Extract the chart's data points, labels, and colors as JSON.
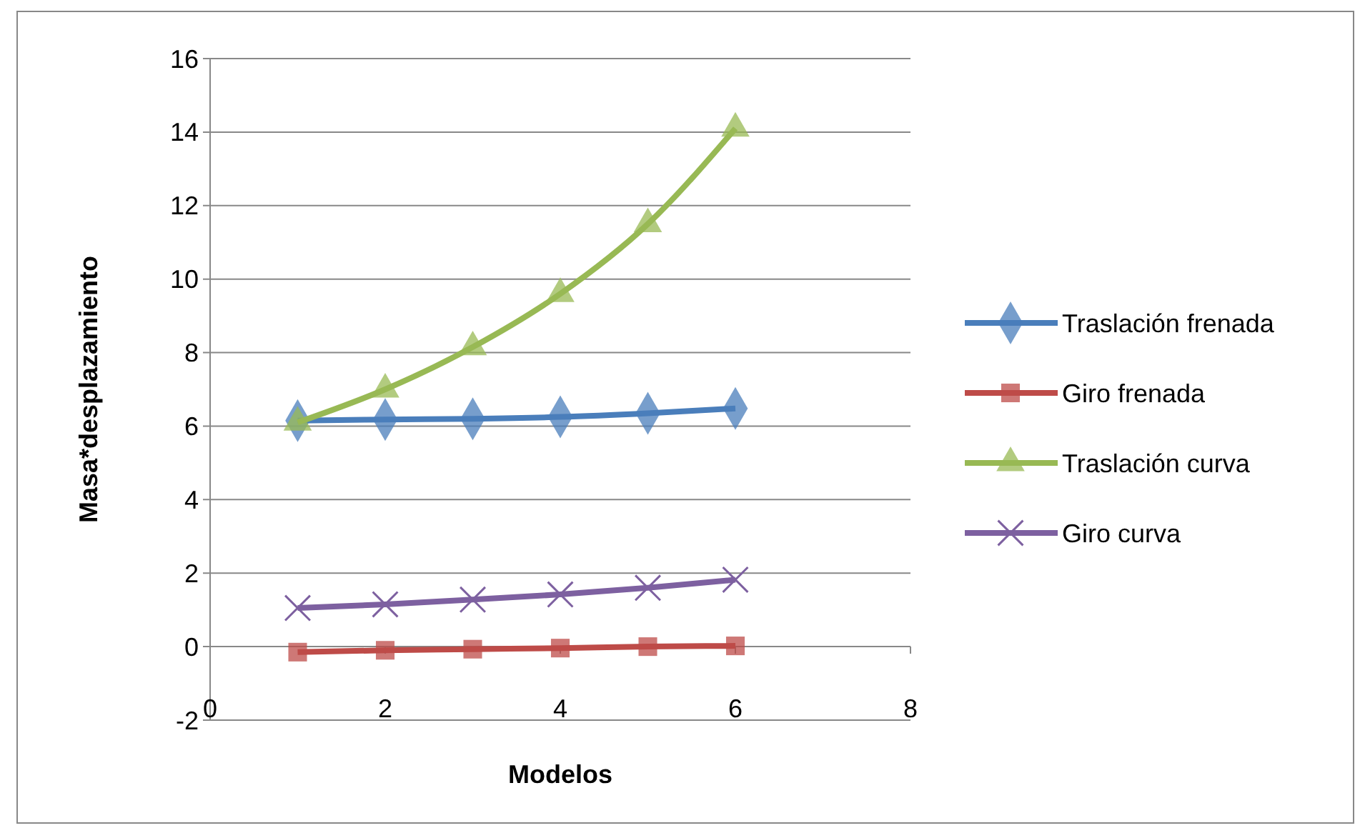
{
  "chart_data": {
    "type": "line",
    "xlabel": "Modelos",
    "ylabel": "Masa*desplazamiento",
    "x": [
      1,
      2,
      3,
      4,
      5,
      6
    ],
    "series": [
      {
        "name": "Traslación frenada",
        "color": "#4a7ebb",
        "marker": "diamond",
        "values": [
          6.15,
          6.18,
          6.2,
          6.25,
          6.35,
          6.48
        ]
      },
      {
        "name": "Giro frenada",
        "color": "#be4b48",
        "marker": "square",
        "values": [
          -0.15,
          -0.1,
          -0.07,
          -0.04,
          0,
          0.02
        ]
      },
      {
        "name": "Traslación curva",
        "color": "#98b954",
        "marker": "triangle",
        "values": [
          6.1,
          7.0,
          8.15,
          9.6,
          11.5,
          14.1
        ]
      },
      {
        "name": "Giro curva",
        "color": "#7d60a0",
        "marker": "cross",
        "values": [
          1.05,
          1.15,
          1.28,
          1.42,
          1.6,
          1.82
        ]
      }
    ],
    "xlim": [
      0,
      8
    ],
    "xticks": [
      0,
      2,
      4,
      6,
      8
    ],
    "ylim": [
      -2,
      16
    ],
    "yticks": [
      -2,
      0,
      2,
      4,
      6,
      8,
      10,
      12,
      14,
      16
    ],
    "grid": "y",
    "legend": "right"
  }
}
